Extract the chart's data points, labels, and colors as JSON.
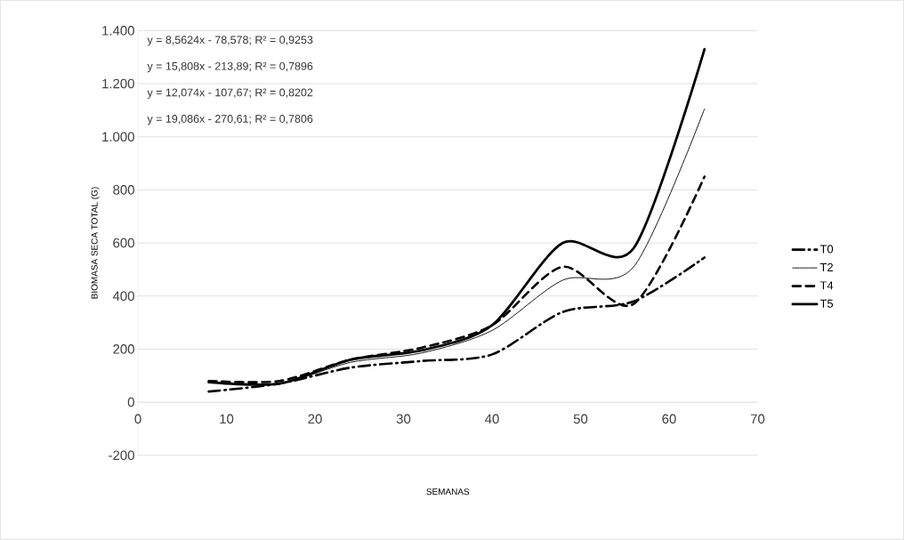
{
  "chart_data": {
    "type": "line",
    "xlabel": "SEMANAS",
    "ylabel": "BIOMASA SECA TOTAL (G)",
    "x": [
      8,
      16,
      24,
      32,
      40,
      48,
      56,
      64
    ],
    "series": [
      {
        "name": "T0",
        "color": "#000000",
        "line_style": "dashdot",
        "values": [
          40,
          70,
          130,
          155,
          180,
          340,
          380,
          545
        ]
      },
      {
        "name": "T2",
        "color": "#000000",
        "line_style": "solid",
        "values": [
          75,
          70,
          150,
          185,
          270,
          460,
          510,
          1105
        ]
      },
      {
        "name": "T4",
        "color": "#000000",
        "line_style": "dashed",
        "values": [
          80,
          80,
          160,
          205,
          290,
          510,
          370,
          850
        ]
      },
      {
        "name": "T5",
        "color": "#000000",
        "line_style": "solid",
        "values": [
          75,
          70,
          160,
          195,
          290,
          600,
          580,
          1330
        ]
      }
    ],
    "xlim": [
      0,
      70
    ],
    "ylim": [
      -200,
      1400
    ],
    "xticks": [
      0,
      10,
      20,
      30,
      40,
      50,
      60,
      70
    ],
    "yticks": [
      -200,
      0,
      200,
      400,
      600,
      800,
      {
        "value": 1000,
        "label": "1.000"
      },
      {
        "value": 1200,
        "label": "1.200"
      },
      {
        "value": 1400,
        "label": "1.400"
      }
    ],
    "grid": "y",
    "legend": "right",
    "annotations": [
      "y = 8,5624x - 78,578; R² = 0,9253",
      "y = 15,808x - 213,89; R² = 0,7896",
      "y = 12,074x - 107,67; R² = 0,8202",
      "y = 19,086x - 270,61; R² = 0,7806"
    ]
  }
}
